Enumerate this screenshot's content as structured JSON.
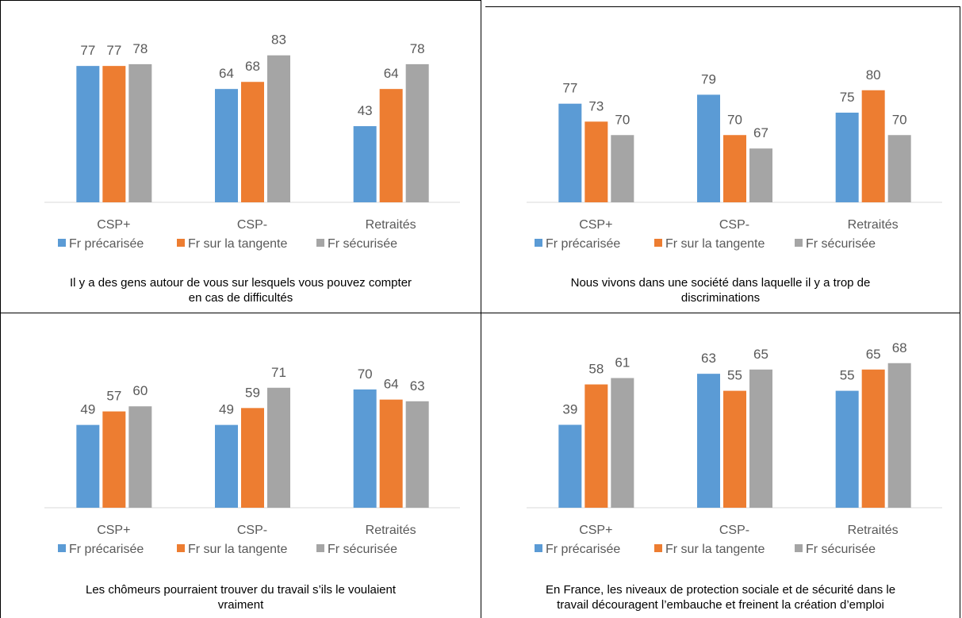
{
  "colors": {
    "Fr précarisée": "#5B9BD5",
    "Fr sur la tangente": "#ED7D31",
    "Fr sécurisée": "#A5A5A5"
  },
  "legend": [
    "Fr précarisée",
    "Fr sur la tangente",
    "Fr sécurisée"
  ],
  "chart_data": [
    {
      "type": "bar",
      "title": "Il y a des gens autour de vous sur lesquels vous pouvez compter en cas de difficultés",
      "caption_lines": [
        "Il y a des gens autour de vous sur lesquels vous pouvez compter",
        "en cas de difficultés"
      ],
      "categories": [
        "CSP+",
        "CSP-",
        "Retraités"
      ],
      "series": [
        {
          "name": "Fr précarisée",
          "values": [
            77,
            64,
            43
          ]
        },
        {
          "name": "Fr sur la tangente",
          "values": [
            77,
            68,
            64
          ]
        },
        {
          "name": "Fr sécurisée",
          "values": [
            78,
            83,
            78
          ]
        }
      ],
      "ylim": [
        0,
        100
      ],
      "legend_position": "bottom",
      "grid": false
    },
    {
      "type": "bar",
      "title": "Nous vivons dans une société dans laquelle il y a trop de discriminations",
      "caption_lines": [
        "Nous vivons dans une société dans laquelle il y a trop de",
        "discriminations"
      ],
      "categories": [
        "CSP+",
        "CSP-",
        "Retraités"
      ],
      "series": [
        {
          "name": "Fr précarisée",
          "values": [
            77,
            79,
            75
          ]
        },
        {
          "name": "Fr sur la tangente",
          "values": [
            73,
            70,
            80
          ]
        },
        {
          "name": "Fr sécurisée",
          "values": [
            70,
            67,
            70
          ]
        }
      ],
      "ylim": [
        55,
        85
      ],
      "legend_position": "bottom",
      "grid": false
    },
    {
      "type": "bar",
      "title": "Les chômeurs pourraient trouver du travail s’ils le voulaient vraiment",
      "caption_lines": [
        "Les chômeurs pourraient trouver du travail s’ils le voulaient",
        "vraiment"
      ],
      "categories": [
        "CSP+",
        "CSP-",
        "Retraités"
      ],
      "series": [
        {
          "name": "Fr précarisée",
          "values": [
            49,
            49,
            70
          ]
        },
        {
          "name": "Fr sur la tangente",
          "values": [
            57,
            59,
            64
          ]
        },
        {
          "name": "Fr sécurisée",
          "values": [
            60,
            71,
            63
          ]
        }
      ],
      "ylim": [
        0,
        100
      ],
      "legend_position": "bottom",
      "grid": false
    },
    {
      "type": "bar",
      "title": "En France, les niveaux de protection sociale et de sécurité dans le travail découragent l’embauche et freinent la création d’emploi",
      "caption_lines": [
        "En France, les niveaux de protection sociale et de sécurité dans le",
        "travail découragent l’embauche et freinent la création d’emploi"
      ],
      "categories": [
        "CSP+",
        "CSP-",
        "Retraités"
      ],
      "series": [
        {
          "name": "Fr précarisée",
          "values": [
            39,
            63,
            55
          ]
        },
        {
          "name": "Fr sur la tangente",
          "values": [
            58,
            55,
            65
          ]
        },
        {
          "name": "Fr sécurisée",
          "values": [
            61,
            65,
            68
          ]
        }
      ],
      "ylim": [
        0,
        100
      ],
      "legend_position": "bottom",
      "grid": false
    }
  ]
}
